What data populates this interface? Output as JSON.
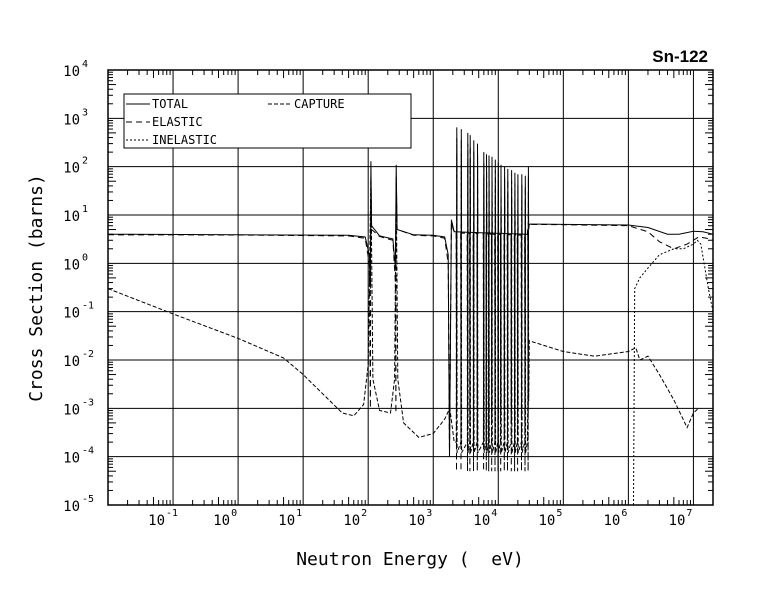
{
  "chart_data": {
    "type": "line",
    "title": "Sn-122",
    "xlabel": "Neutron Energy (  eV)",
    "ylabel": "Cross Section (barns)",
    "xscale": "log",
    "yscale": "log",
    "xlim": [
      0.01,
      20000000
    ],
    "ylim": [
      1e-05,
      10000
    ],
    "grid": true,
    "legend_position": "top-left",
    "x_ticks": [
      {
        "base": "10",
        "exp": "-1",
        "value": 0.1
      },
      {
        "base": "10",
        "exp": "0",
        "value": 1
      },
      {
        "base": "10",
        "exp": "1",
        "value": 10
      },
      {
        "base": "10",
        "exp": "2",
        "value": 100
      },
      {
        "base": "10",
        "exp": "3",
        "value": 1000
      },
      {
        "base": "10",
        "exp": "4",
        "value": 10000
      },
      {
        "base": "10",
        "exp": "5",
        "value": 100000
      },
      {
        "base": "10",
        "exp": "6",
        "value": 1000000
      },
      {
        "base": "10",
        "exp": "7",
        "value": 10000000
      }
    ],
    "y_ticks": [
      {
        "base": "10",
        "exp": "4",
        "value": 10000
      },
      {
        "base": "10",
        "exp": "3",
        "value": 1000
      },
      {
        "base": "10",
        "exp": "2",
        "value": 100
      },
      {
        "base": "10",
        "exp": "1",
        "value": 10
      },
      {
        "base": "10",
        "exp": "0",
        "value": 1
      },
      {
        "base": "10",
        "exp": "-1",
        "value": 0.1
      },
      {
        "base": "10",
        "exp": "-2",
        "value": 0.01
      },
      {
        "base": "10",
        "exp": "-3",
        "value": 0.001
      },
      {
        "base": "10",
        "exp": "-4",
        "value": 0.0001
      },
      {
        "base": "10",
        "exp": "-5",
        "value": 1e-05
      }
    ],
    "resonances": [
      [
        1850,
        1500
      ],
      [
        2300,
        650
      ],
      [
        2700,
        600
      ],
      [
        3400,
        500
      ],
      [
        3700,
        450
      ],
      [
        4200,
        350
      ],
      [
        4800,
        300
      ],
      [
        6000,
        200
      ],
      [
        6600,
        180
      ],
      [
        7200,
        170
      ],
      [
        8000,
        160
      ],
      [
        9000,
        140
      ],
      [
        10000,
        120
      ],
      [
        11000,
        110
      ],
      [
        12500,
        100
      ],
      [
        14000,
        90
      ],
      [
        16000,
        85
      ],
      [
        18000,
        75
      ],
      [
        20000,
        70
      ],
      [
        23000,
        70
      ],
      [
        26000,
        65
      ],
      [
        29000,
        100
      ]
    ],
    "series": [
      {
        "name": "TOTAL",
        "style": "solid",
        "points": [
          [
            0.01,
            4
          ],
          [
            1,
            3.9
          ],
          [
            50,
            3.8
          ],
          [
            90,
            3.5
          ],
          [
            104,
            1.5
          ],
          [
            108,
            0.3
          ],
          [
            110,
            130
          ],
          [
            113,
            6
          ],
          [
            150,
            3.7
          ],
          [
            240,
            3.2
          ],
          [
            262,
            0.8
          ],
          [
            270,
            110
          ],
          [
            278,
            5
          ],
          [
            500,
            3.9
          ],
          [
            1000,
            3.8
          ],
          [
            1500,
            3.5
          ],
          [
            1700,
            1.5
          ],
          [
            1780,
            0.0001
          ],
          [
            1900,
            8
          ],
          [
            2100,
            4.5
          ],
          [
            28000,
            4
          ],
          [
            30000,
            6.5
          ],
          [
            100000,
            6.4
          ],
          [
            1000000,
            6.2
          ],
          [
            2000000,
            5.5
          ],
          [
            4000000,
            4
          ],
          [
            6000000,
            4
          ],
          [
            10000000,
            4.6
          ],
          [
            14000000,
            4.5
          ],
          [
            20000000,
            4
          ]
        ]
      },
      {
        "name": "ELASTIC",
        "style": "dashed",
        "points": [
          [
            0.01,
            3.9
          ],
          [
            1,
            3.85
          ],
          [
            50,
            3.7
          ],
          [
            90,
            3.3
          ],
          [
            104,
            1
          ],
          [
            108,
            0.001
          ],
          [
            110,
            60
          ],
          [
            113,
            5
          ],
          [
            150,
            3.6
          ],
          [
            240,
            3
          ],
          [
            262,
            0.4
          ],
          [
            267,
            0.0008
          ],
          [
            270,
            60
          ],
          [
            278,
            5
          ],
          [
            500,
            3.8
          ],
          [
            1000,
            3.7
          ],
          [
            1500,
            3.3
          ],
          [
            1700,
            1
          ],
          [
            1780,
            0.0001
          ],
          [
            1900,
            7
          ],
          [
            2100,
            4.3
          ],
          [
            28000,
            3.8
          ],
          [
            30000,
            6.4
          ],
          [
            100000,
            6.3
          ],
          [
            1000000,
            6
          ],
          [
            2000000,
            4.5
          ],
          [
            3000000,
            2.8
          ],
          [
            5000000,
            2
          ],
          [
            8000000,
            2.5
          ],
          [
            12000000,
            3.5
          ],
          [
            16000000,
            3.3
          ],
          [
            20000000,
            3
          ]
        ]
      },
      {
        "name": "CAPTURE",
        "style": "dash",
        "points": [
          [
            0.01,
            0.3
          ],
          [
            0.1,
            0.09
          ],
          [
            1,
            0.028
          ],
          [
            5,
            0.011
          ],
          [
            10,
            0.005
          ],
          [
            20,
            0.002
          ],
          [
            40,
            0.0008
          ],
          [
            60,
            0.0007
          ],
          [
            85,
            0.0012
          ],
          [
            100,
            0.008
          ],
          [
            110,
            60
          ],
          [
            118,
            0.004
          ],
          [
            150,
            0.0009
          ],
          [
            220,
            0.0008
          ],
          [
            255,
            0.004
          ],
          [
            270,
            50
          ],
          [
            285,
            0.004
          ],
          [
            350,
            0.0005
          ],
          [
            600,
            0.00025
          ],
          [
            1000,
            0.0003
          ],
          [
            1500,
            0.0006
          ],
          [
            1800,
            0.001
          ],
          [
            2100,
            0.0002
          ],
          [
            28000,
            0.0002
          ],
          [
            30000,
            0.025
          ],
          [
            100000,
            0.015
          ],
          [
            300000,
            0.012
          ],
          [
            1000000,
            0.015
          ],
          [
            1300000,
            0.018
          ],
          [
            1500000,
            0.01
          ],
          [
            2000000,
            0.012
          ],
          [
            3000000,
            0.005
          ],
          [
            5000000,
            0.0015
          ],
          [
            8000000,
            0.0004
          ],
          [
            10000000,
            0.0008
          ],
          [
            12000000,
            0.001
          ]
        ]
      },
      {
        "name": "INELASTIC",
        "style": "dotted",
        "points": [
          [
            1200000,
            1e-05
          ],
          [
            1250000,
            0.3
          ],
          [
            1500000,
            0.5
          ],
          [
            2000000,
            0.8
          ],
          [
            3000000,
            1.5
          ],
          [
            5000000,
            2
          ],
          [
            7000000,
            2
          ],
          [
            10000000,
            2.5
          ],
          [
            11500000,
            3
          ],
          [
            13000000,
            2.5
          ],
          [
            15000000,
            0.8
          ],
          [
            17000000,
            0.3
          ],
          [
            20000000,
            0.1
          ]
        ]
      }
    ]
  }
}
